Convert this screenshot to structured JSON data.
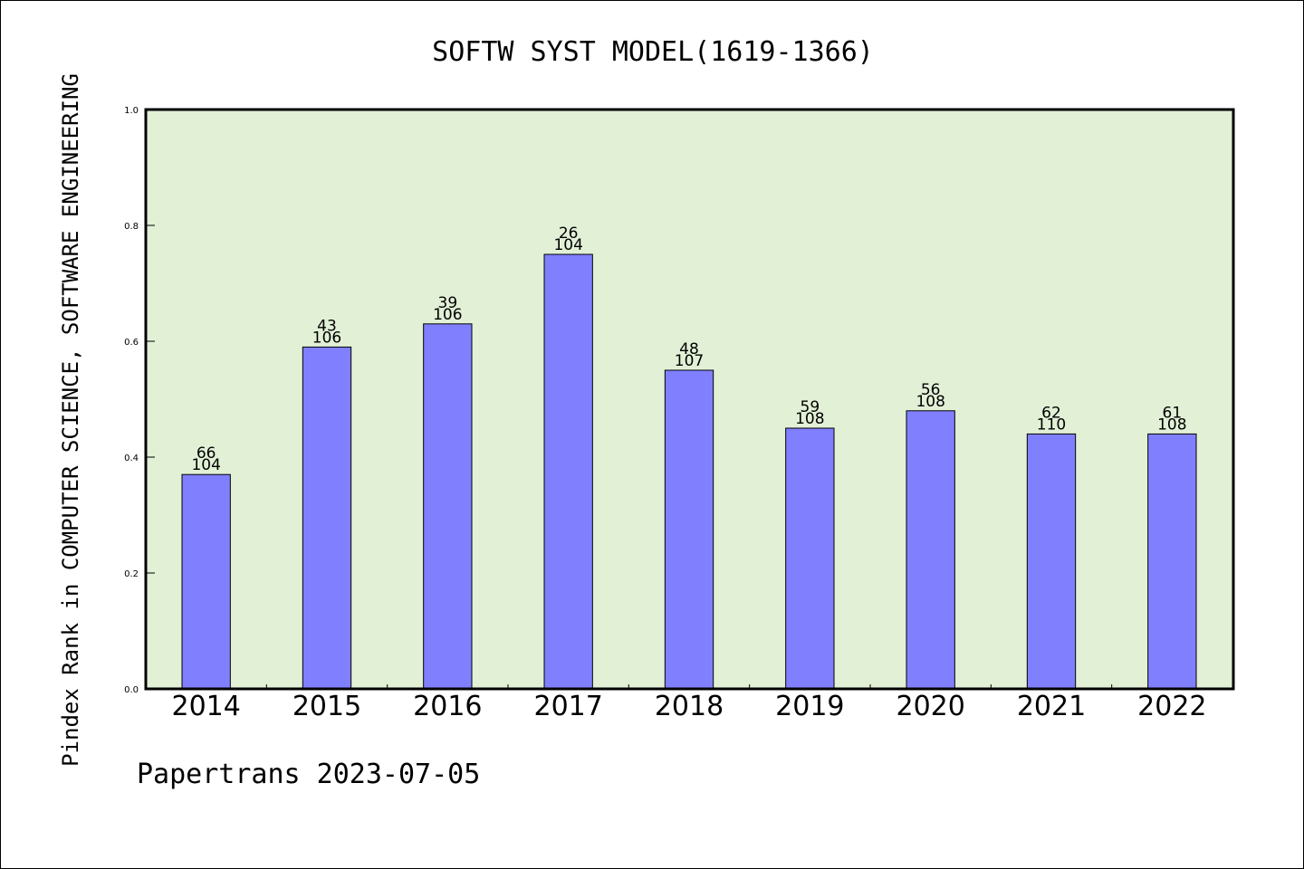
{
  "chart_data": {
    "type": "bar",
    "title": "SOFTW SYST MODEL(1619-1366)",
    "xlabel": "",
    "ylabel": "Pindex Rank in COMPUTER SCIENCE, SOFTWARE ENGINEERING",
    "footer": "Papertrans 2023-07-05",
    "categories": [
      "2014",
      "2015",
      "2016",
      "2017",
      "2018",
      "2019",
      "2020",
      "2021",
      "2022"
    ],
    "values": [
      0.37,
      0.59,
      0.63,
      0.75,
      0.55,
      0.45,
      0.48,
      0.44,
      0.44
    ],
    "rank_labels": [
      "66",
      "43",
      "39",
      "26",
      "48",
      "59",
      "56",
      "62",
      "61"
    ],
    "total_labels": [
      "104",
      "106",
      "106",
      "104",
      "107",
      "108",
      "108",
      "110",
      "108"
    ],
    "ylim": [
      0.0,
      1.0
    ],
    "yticks": [
      "0.0",
      "0.2",
      "0.4",
      "0.6",
      "0.8",
      "1.0"
    ],
    "grid": false,
    "colors": {
      "plot_background": "#e2f0d6",
      "bar_fill": "#8080ff",
      "bar_edge": "#000000"
    }
  }
}
